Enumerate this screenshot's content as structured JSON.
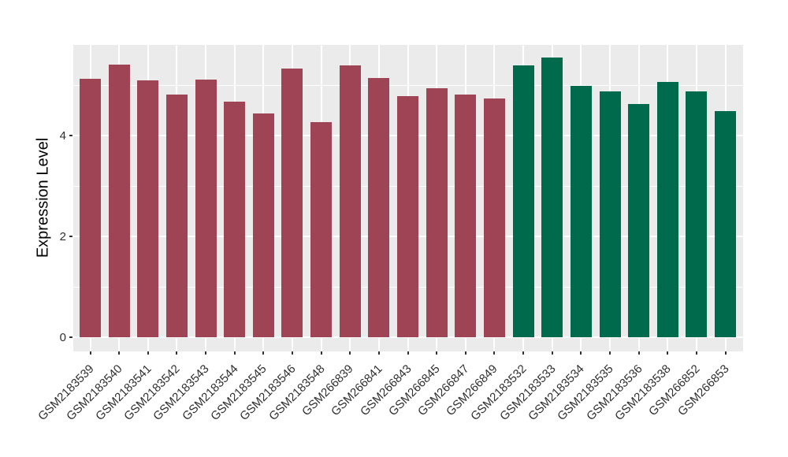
{
  "chart_data": {
    "type": "bar",
    "title": "",
    "xlabel": "",
    "ylabel": "Expression Level",
    "ylim": [
      -0.27,
      5.81
    ],
    "yticks_major": [
      0,
      2,
      4
    ],
    "yticks_minor": [
      1,
      3,
      5
    ],
    "ytick_labels": [
      "0",
      "2",
      "4"
    ],
    "grid": "on",
    "legend": "none",
    "categories": [
      "GSM2183539",
      "GSM2183540",
      "GSM2183541",
      "GSM2183542",
      "GSM2183543",
      "GSM2183544",
      "GSM2183545",
      "GSM2183546",
      "GSM2183548",
      "GSM266839",
      "GSM266841",
      "GSM266843",
      "GSM266845",
      "GSM266847",
      "GSM266849",
      "GSM2183532",
      "GSM2183533",
      "GSM2183534",
      "GSM2183535",
      "GSM2183536",
      "GSM2183538",
      "GSM266852",
      "GSM266853"
    ],
    "values": [
      5.13,
      5.4,
      5.1,
      4.82,
      5.11,
      4.67,
      4.44,
      5.33,
      4.27,
      5.39,
      5.14,
      4.78,
      4.94,
      4.81,
      4.73,
      5.39,
      5.55,
      4.98,
      4.87,
      4.63,
      5.06,
      4.88,
      4.49
    ],
    "groups": [
      "maroon",
      "maroon",
      "maroon",
      "maroon",
      "maroon",
      "maroon",
      "maroon",
      "maroon",
      "maroon",
      "maroon",
      "maroon",
      "maroon",
      "maroon",
      "maroon",
      "maroon",
      "green",
      "green",
      "green",
      "green",
      "green",
      "green",
      "green",
      "green"
    ]
  },
  "colors": {
    "maroon_bar": "#9E4454",
    "green_bar": "#006B4C",
    "panel_background": "#EBEBEB",
    "gridline": "#FFFFFF",
    "tick_mark": "#333333",
    "tick_text": "#303030",
    "axis_title_text": "#000000",
    "figure_background": "#FFFFFF"
  }
}
